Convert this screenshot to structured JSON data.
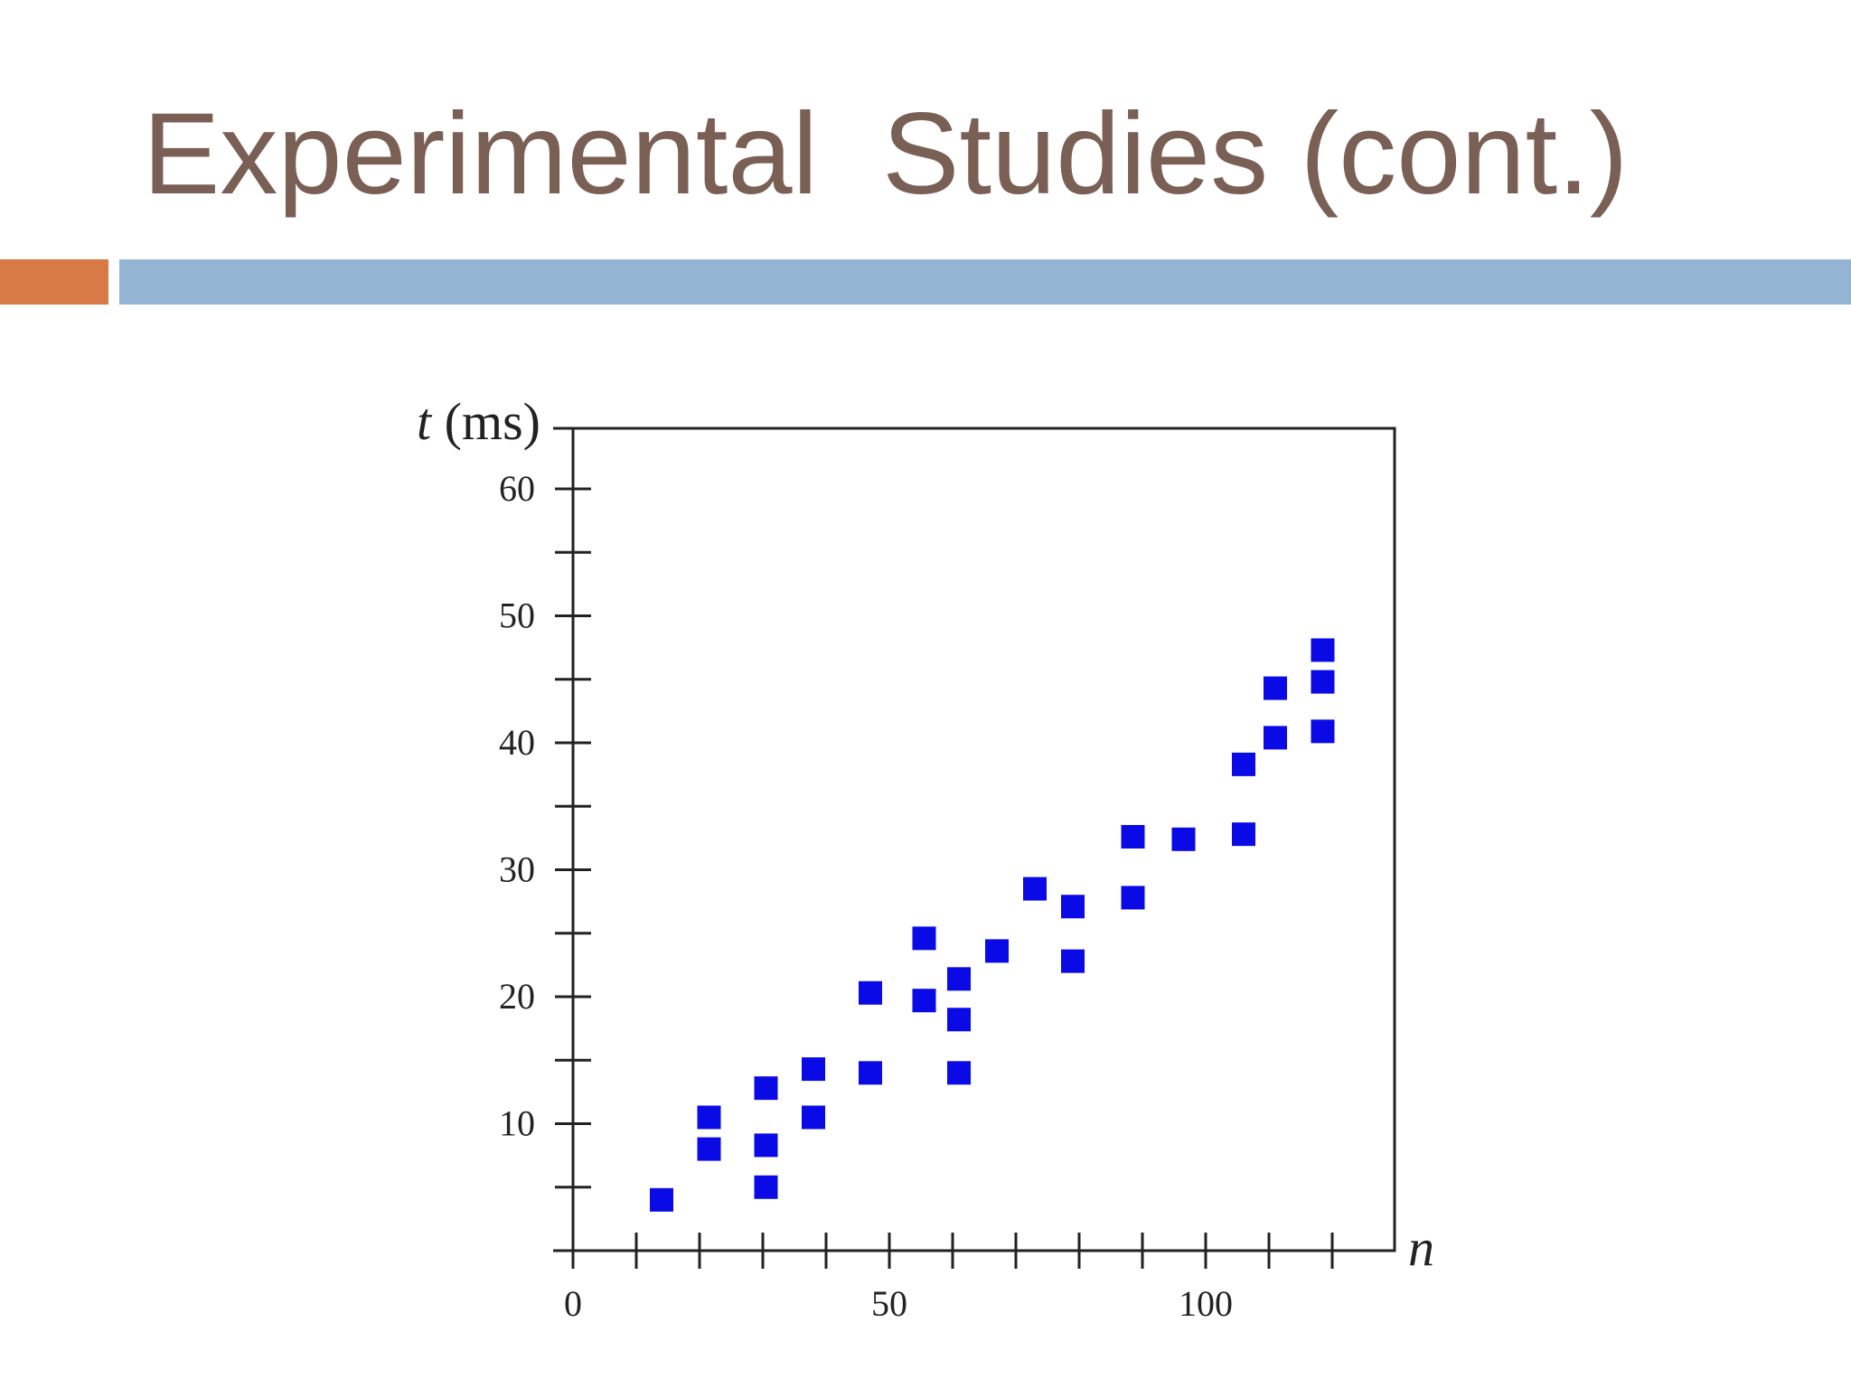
{
  "slide": {
    "title": "Experimental  Studies (cont.)",
    "accent_left_color": "#d77a45",
    "accent_bar_color": "#93b5d3",
    "title_color": "#7a5f55"
  },
  "chart_data": {
    "type": "scatter",
    "title": "",
    "xlabel": "n",
    "ylabel_var": "t",
    "ylabel_unit": "(ms)",
    "xlim": [
      0,
      130
    ],
    "ylim": [
      0,
      65
    ],
    "x_ticks": [
      0,
      50,
      100
    ],
    "x_minor_ticks": [
      10,
      20,
      30,
      40,
      50,
      60,
      70,
      80,
      90,
      100,
      110,
      120
    ],
    "y_ticks": [
      10,
      20,
      30,
      40,
      50,
      60
    ],
    "y_minor_ticks": [
      5,
      10,
      15,
      20,
      25,
      30,
      35,
      40,
      45,
      50,
      55,
      60
    ],
    "marker": "square",
    "marker_color": "#0a0ae6",
    "grid": false,
    "legend": "none",
    "points": [
      {
        "x": 14,
        "y": 4
      },
      {
        "x": 21.5,
        "y": 8
      },
      {
        "x": 21.5,
        "y": 10.5
      },
      {
        "x": 30.5,
        "y": 5
      },
      {
        "x": 30.5,
        "y": 8.3
      },
      {
        "x": 30.5,
        "y": 12.8
      },
      {
        "x": 38,
        "y": 10.5
      },
      {
        "x": 38,
        "y": 14.3
      },
      {
        "x": 47,
        "y": 14
      },
      {
        "x": 47,
        "y": 20.3
      },
      {
        "x": 55.5,
        "y": 19.7
      },
      {
        "x": 55.5,
        "y": 24.6
      },
      {
        "x": 61,
        "y": 14
      },
      {
        "x": 61,
        "y": 18.2
      },
      {
        "x": 61,
        "y": 21.4
      },
      {
        "x": 67,
        "y": 23.6
      },
      {
        "x": 73,
        "y": 28.5
      },
      {
        "x": 79,
        "y": 22.8
      },
      {
        "x": 79,
        "y": 27.1
      },
      {
        "x": 88.5,
        "y": 27.8
      },
      {
        "x": 88.5,
        "y": 32.6
      },
      {
        "x": 96.5,
        "y": 32.4
      },
      {
        "x": 106,
        "y": 32.8
      },
      {
        "x": 106,
        "y": 38.3
      },
      {
        "x": 111,
        "y": 40.4
      },
      {
        "x": 111,
        "y": 44.3
      },
      {
        "x": 118.5,
        "y": 40.9
      },
      {
        "x": 118.5,
        "y": 44.8
      },
      {
        "x": 118.5,
        "y": 47.3
      }
    ]
  }
}
